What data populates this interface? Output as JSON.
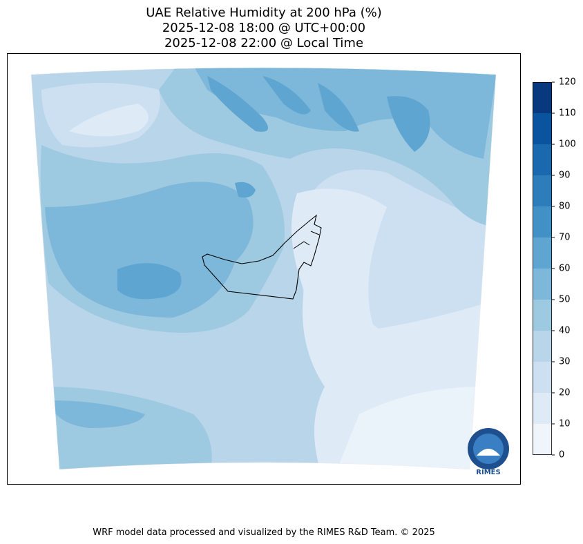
{
  "map": {
    "title": [
      "UAE Relative Humidity at 200 hPa (%)",
      "2025-12-08 18:00 @ UTC+00:00",
      "2025-12-08 22:00 @ Local Time"
    ],
    "colorbar": {
      "ticks": [
        0,
        10,
        20,
        30,
        40,
        50,
        60,
        70,
        80,
        90,
        100,
        110,
        120
      ],
      "colors": [
        "#eff5fb",
        "#deebf7",
        "#cde0f1",
        "#b9d5ea",
        "#9dc9e1",
        "#7db8da",
        "#5ea5d1",
        "#4291c6",
        "#2d7dbb",
        "#1a69af",
        "#0a549f",
        "#08397f"
      ]
    },
    "logo": "RIMES",
    "footer": "WRF model data processed and visualized by the RIMES R&D Team. © 2025"
  }
}
